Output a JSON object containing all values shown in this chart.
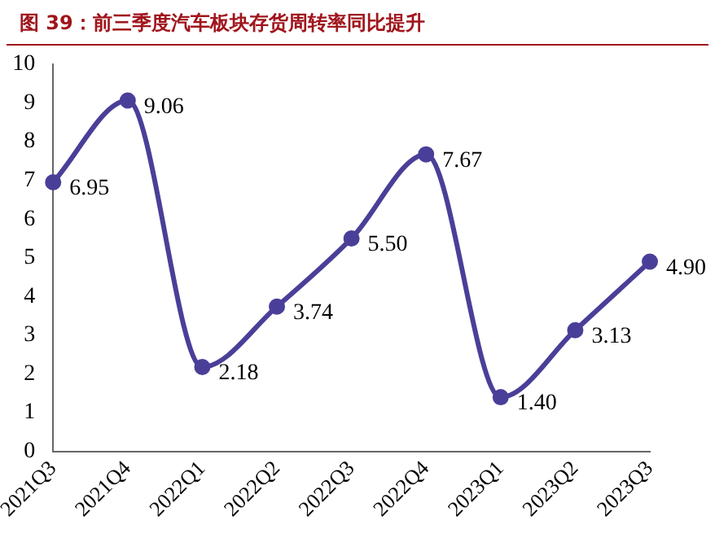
{
  "chart_data": {
    "type": "line",
    "title": "图 39：前三季度汽车板块存货周转率同比提升",
    "categories": [
      "2021Q3",
      "2021Q4",
      "2022Q1",
      "2022Q2",
      "2022Q3",
      "2022Q4",
      "2023Q1",
      "2023Q2",
      "2023Q3"
    ],
    "values": [
      6.95,
      9.06,
      2.18,
      3.74,
      5.5,
      7.67,
      1.4,
      3.13,
      4.9
    ],
    "color": "#4a3f98",
    "ylim": [
      0,
      10
    ],
    "yticks": [
      0,
      1,
      2,
      3,
      4,
      5,
      6,
      7,
      8,
      9,
      10
    ],
    "value_labels": [
      "6.95",
      "9.06",
      "2.18",
      "3.74",
      "5.50",
      "7.67",
      "1.40",
      "3.13",
      "4.90"
    ],
    "grid": false,
    "legend": false,
    "marker": "circle",
    "line_style": "solid"
  }
}
